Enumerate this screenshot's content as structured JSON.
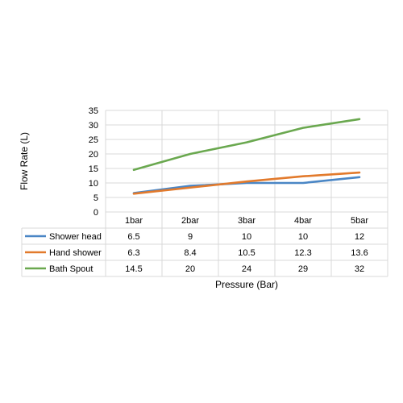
{
  "chart_data": {
    "type": "line",
    "categories": [
      "1bar",
      "2bar",
      "3bar",
      "4bar",
      "5bar"
    ],
    "series": [
      {
        "name": "Shower head",
        "values": [
          6.5,
          9,
          10,
          10,
          12
        ],
        "labels": [
          "6.5",
          "9",
          "10",
          "10",
          "12"
        ],
        "color": "#4a86c5"
      },
      {
        "name": "Hand shower",
        "values": [
          6.3,
          8.4,
          10.5,
          12.3,
          13.6
        ],
        "labels": [
          "6.3",
          "8.4",
          "10.5",
          "12.3",
          "13.6"
        ],
        "color": "#e27a2c"
      },
      {
        "name": "Bath Spout",
        "values": [
          14.5,
          20,
          24,
          29,
          32
        ],
        "labels": [
          "14.5",
          "20",
          "24",
          "29",
          "32"
        ],
        "color": "#6aa84f"
      }
    ],
    "yticks": [
      "0",
      "5",
      "10",
      "15",
      "20",
      "25",
      "30",
      "35"
    ],
    "ylim": [
      0,
      35
    ],
    "xlabel": "Pressure (Bar)",
    "ylabel": "Flow Rate (L)",
    "grid": true,
    "legend": "data-table"
  }
}
